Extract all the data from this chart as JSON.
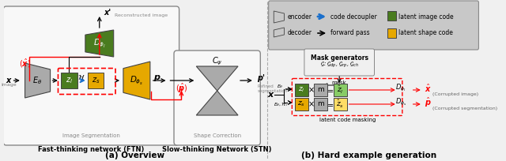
{
  "bg_color": "#f0f0f0",
  "green_box": "#4a7c1f",
  "orange_box": "#e6a800",
  "gray_encoder": "#aaaaaa",
  "gray_hourglass": "#888888",
  "gray_legend": "#c8c8c8",
  "red_color": "#dd0000",
  "blue_color": "#1a6fcc",
  "panel_bg": "#f8f8f8",
  "legend_bg": "#cccccc",
  "mask_bg": "#f0f0f0",
  "title_a": "(a) Overview",
  "title_b": "(b) Hard example generation",
  "ftn_label": "Fast-thinking network (FTN)",
  "stn_label": "Slow-thinking Network (STN)"
}
